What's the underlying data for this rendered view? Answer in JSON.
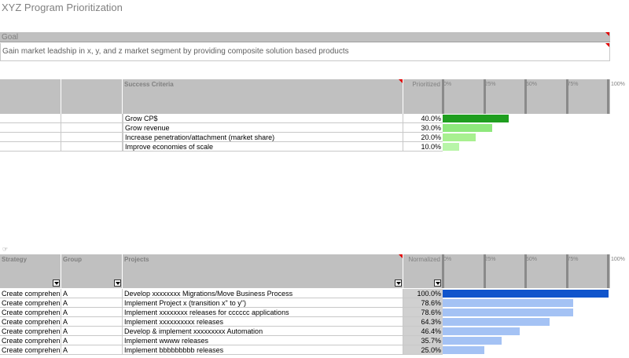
{
  "title": "XYZ Program Prioritization",
  "goal": {
    "label": "Goal",
    "text": "Gain market leadship in x, y, and z market segment by providing composite solution based products"
  },
  "criteria": {
    "headers": {
      "success": "Success Criteria",
      "prioritized": "Prioritized"
    },
    "ticks": [
      "0%",
      "25%",
      "50%",
      "75%",
      "100%"
    ],
    "colors": [
      "#1f9e1f",
      "#8ee87c",
      "#a8f090",
      "#b8f5a8"
    ],
    "rows": [
      {
        "name": "Grow CP$",
        "pct": "40.0%",
        "value": 0.4
      },
      {
        "name": "Grow revenue",
        "pct": "30.0%",
        "value": 0.3
      },
      {
        "name": "Increase penetration/attachment (market share)",
        "pct": "20.0%",
        "value": 0.2
      },
      {
        "name": "Improve economies of scale",
        "pct": "10.0%",
        "value": 0.1
      }
    ]
  },
  "projects": {
    "headers": {
      "strategy": "Strategy",
      "group": "Group",
      "projects": "Projects",
      "normalized": "Normalized"
    },
    "ticks": [
      "0%",
      "25%",
      "50%",
      "75%",
      "100%"
    ],
    "colors": {
      "top": "#1155cc",
      "rest": "#a4c2f4"
    },
    "rows": [
      {
        "strategy": "Create comprehen",
        "group": "A",
        "project": "Develop xxxxxxxx Migrations/Move Business Process",
        "pct": "100.0%",
        "value": 1.0
      },
      {
        "strategy": "Create comprehen",
        "group": "A",
        "project": "Implement Project x (transition x\" to y\")",
        "pct": "78.6%",
        "value": 0.786
      },
      {
        "strategy": "Create comprehen",
        "group": "A",
        "project": "Implement  xxxxxxxx releases for cccccc applications",
        "pct": "78.6%",
        "value": 0.786
      },
      {
        "strategy": "Create comprehen",
        "group": "A",
        "project": "Implement xxxxxxxxxx releases",
        "pct": "64.3%",
        "value": 0.643
      },
      {
        "strategy": "Create comprehen",
        "group": "A",
        "project": "Develop & implement xxxxxxxxx Automation",
        "pct": "46.4%",
        "value": 0.464
      },
      {
        "strategy": "Create comprehen",
        "group": "A",
        "project": "Implement wwww releases",
        "pct": "35.7%",
        "value": 0.357
      },
      {
        "strategy": "Create comprehen",
        "group": "A",
        "project": "Implement bbbbbbbbb releases",
        "pct": "25.0%",
        "value": 0.25
      }
    ]
  }
}
